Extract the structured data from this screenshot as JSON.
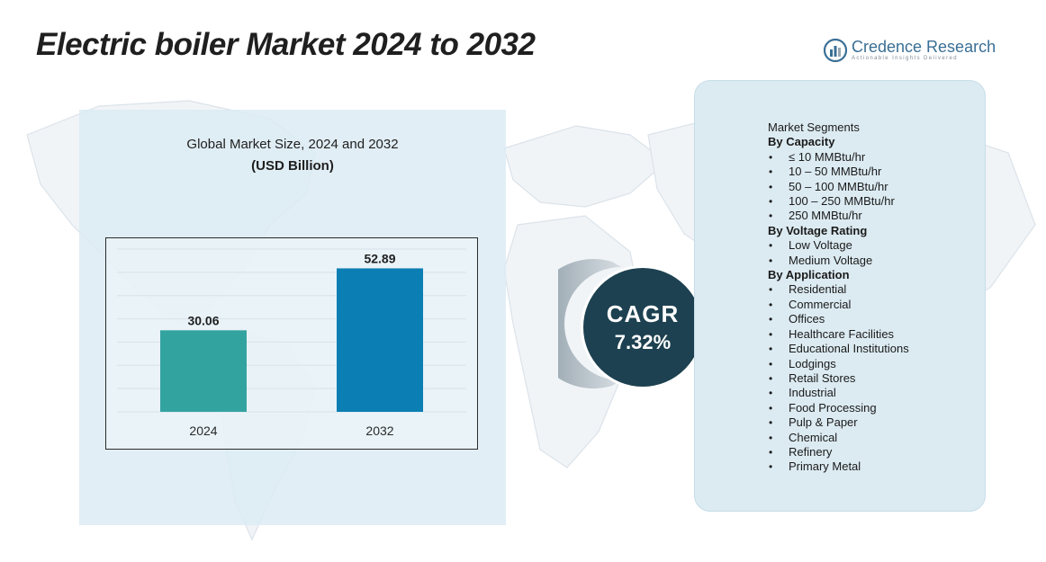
{
  "title": "Electric boiler Market 2024 to 2032",
  "brand": {
    "name": "Credence Research",
    "tagline": "Actionable Insights Delivered",
    "logo_icon": "bar-chart-circle-icon"
  },
  "chart": {
    "title": "Global Market Size, 2024 and 2032",
    "unit": "(USD Billion)"
  },
  "chart_data": {
    "type": "bar",
    "title": "Global Market Size, 2024 and 2032",
    "ylabel": "(USD Billion)",
    "xlabel": "",
    "categories": [
      "2024",
      "2032"
    ],
    "values": [
      30.06,
      52.89
    ],
    "value_labels": [
      "30.06",
      "52.89"
    ],
    "colors": [
      "#33a3a0",
      "#0b7eb3"
    ],
    "ylim": [
      0,
      60
    ],
    "grid": true,
    "legend": "none"
  },
  "cagr": {
    "label": "CAGR",
    "value": "7.32%"
  },
  "segments": {
    "header": "Market Segments",
    "groups": [
      {
        "heading": "By Capacity",
        "items": [
          "≤ 10 MMBtu/hr",
          "10 – 50 MMBtu/hr",
          "50 – 100 MMBtu/hr",
          "100 – 250 MMBtu/hr",
          "250 MMBtu/hr"
        ]
      },
      {
        "heading": "By Voltage Rating",
        "items": [
          "Low Voltage",
          "Medium Voltage"
        ]
      },
      {
        "heading": "By Application",
        "items": [
          "Residential",
          "Commercial",
          "Offices",
          "Healthcare Facilities",
          "Educational Institutions",
          "Lodgings",
          "Retail Stores",
          "Industrial",
          "Food Processing",
          "Pulp & Paper",
          "Chemical",
          "Refinery",
          "Primary Metal"
        ]
      }
    ]
  },
  "colors": {
    "panel": "#dcebf2",
    "cagr": "#1d4150",
    "brand": "#3a6f95"
  }
}
